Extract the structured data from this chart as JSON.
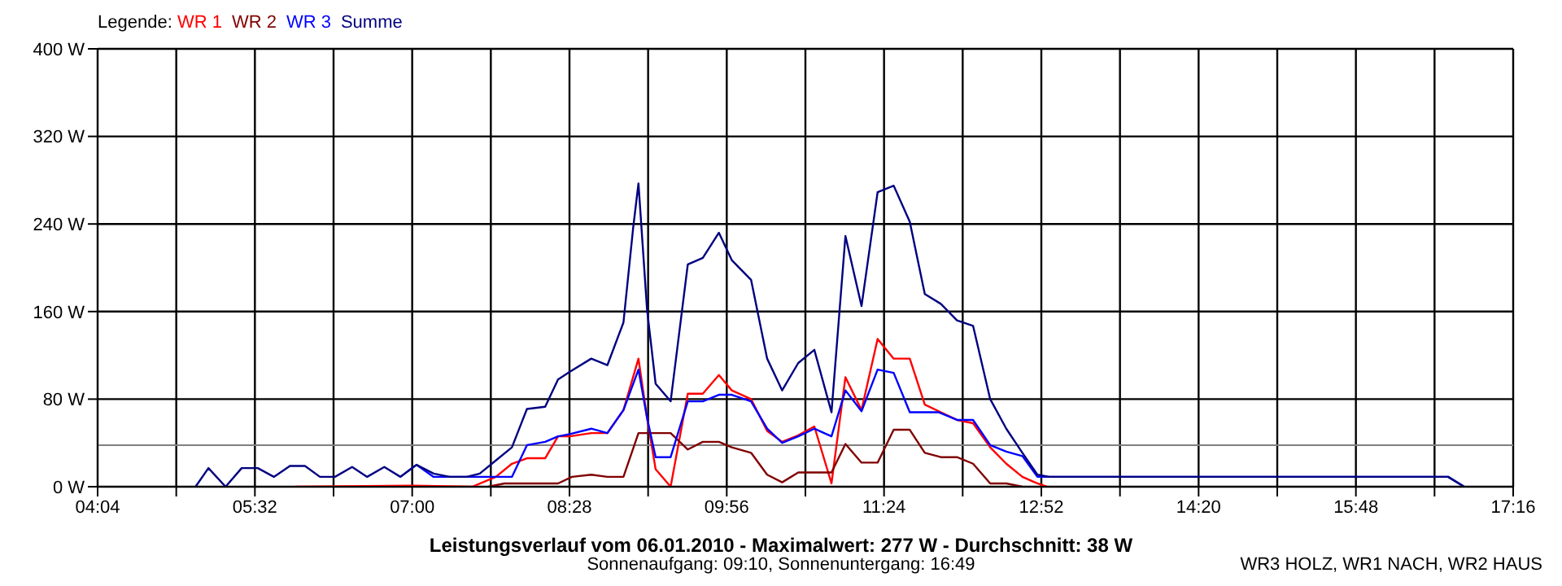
{
  "chart_data": {
    "type": "line",
    "title": "Leistungsverlauf vom 06.01.2010 - Maximalwert: 277 W - Durchschnitt: 38 W",
    "subtitle": "Sonnenaufgang: 09:10, Sonnenuntergang: 16:49",
    "legend_title": "Legende:",
    "legend": "top left",
    "grid": true,
    "marker": "none",
    "line_style": "solid",
    "xlim": [
      4.0667,
      17.2667
    ],
    "xticks": [
      {
        "value": 4.0667,
        "label": "04:04"
      },
      {
        "value": 4.8,
        "label": null
      },
      {
        "value": 5.5333,
        "label": "05:32"
      },
      {
        "value": 6.2667,
        "label": null
      },
      {
        "value": 7.0,
        "label": "07:00"
      },
      {
        "value": 7.7333,
        "label": null
      },
      {
        "value": 8.4667,
        "label": "08:28"
      },
      {
        "value": 9.2,
        "label": null
      },
      {
        "value": 9.9333,
        "label": "09:56"
      },
      {
        "value": 10.6667,
        "label": null
      },
      {
        "value": 11.4,
        "label": "11:24"
      },
      {
        "value": 12.1333,
        "label": null
      },
      {
        "value": 12.8667,
        "label": "12:52"
      },
      {
        "value": 13.6,
        "label": null
      },
      {
        "value": 14.3333,
        "label": "14:20"
      },
      {
        "value": 15.0667,
        "label": null
      },
      {
        "value": 15.8,
        "label": "15:48"
      },
      {
        "value": 16.5333,
        "label": null
      },
      {
        "value": 17.2667,
        "label": "17:16"
      }
    ],
    "ylim": [
      0,
      400
    ],
    "yticks": [
      {
        "value": 0,
        "label": "0 W"
      },
      {
        "value": 80,
        "label": "80 W"
      },
      {
        "value": 160,
        "label": "160 W"
      },
      {
        "value": 240,
        "label": "240 W"
      },
      {
        "value": 320,
        "label": "320 W"
      },
      {
        "value": 400,
        "label": "400 W"
      }
    ],
    "ref_lines": [
      {
        "axis": "y",
        "value": 38,
        "color": "#808080"
      }
    ],
    "annotations": [
      "WR3 HOLZ, WR1 NACH, WR2 HAUS"
    ],
    "series": [
      {
        "name": "WR 1",
        "color": "#ff0000",
        "x": [
          5.91,
          7.0,
          7.56,
          7.78,
          7.93,
          8.07,
          8.24,
          8.36,
          8.47,
          8.67,
          8.82,
          8.97,
          9.11,
          9.19,
          9.27,
          9.41,
          9.57,
          9.71,
          9.86,
          9.98,
          10.16,
          10.31,
          10.45,
          10.6,
          10.75,
          10.91,
          11.04,
          11.19,
          11.34,
          11.49,
          11.64,
          11.78,
          11.93,
          12.08,
          12.23,
          12.39,
          12.54,
          12.69,
          12.83,
          12.92
        ],
        "values": [
          0,
          1,
          0,
          9,
          21,
          26,
          26,
          46,
          46,
          49,
          49,
          70,
          117,
          63,
          16,
          0,
          85,
          85,
          102,
          88,
          80,
          51,
          41,
          47,
          55,
          3,
          100,
          70,
          135,
          117,
          117,
          75,
          68,
          61,
          58,
          36,
          21,
          9,
          3,
          0
        ]
      },
      {
        "name": "WR 2",
        "color": "#800000",
        "x": [
          7.71,
          7.86,
          8.07,
          8.24,
          8.36,
          8.49,
          8.67,
          8.82,
          8.97,
          9.11,
          9.27,
          9.41,
          9.57,
          9.71,
          9.86,
          9.98,
          10.16,
          10.31,
          10.45,
          10.6,
          10.91,
          11.04,
          11.19,
          11.34,
          11.49,
          11.64,
          11.78,
          11.93,
          12.08,
          12.23,
          12.39,
          12.54,
          12.69
        ],
        "values": [
          0,
          3,
          3,
          3,
          3,
          9,
          11,
          9,
          9,
          49,
          49,
          49,
          34,
          41,
          41,
          36,
          31,
          11,
          4,
          13,
          13,
          39,
          22,
          22,
          52,
          52,
          31,
          27,
          27,
          21,
          3,
          3,
          0
        ]
      },
      {
        "name": "WR 3",
        "color": "#0000ff",
        "x": [
          6.89,
          7.04,
          7.2,
          7.35,
          7.51,
          7.63,
          7.78,
          7.93,
          8.07,
          8.24,
          8.36,
          8.47,
          8.67,
          8.82,
          8.97,
          9.11,
          9.19,
          9.27,
          9.41,
          9.57,
          9.71,
          9.86,
          9.98,
          10.16,
          10.31,
          10.45,
          10.6,
          10.75,
          10.91,
          11.04,
          11.19,
          11.34,
          11.49,
          11.64,
          11.91,
          12.08,
          12.23,
          12.39,
          12.54,
          12.69,
          12.83,
          12.94,
          16.66,
          16.81
        ],
        "values": [
          9,
          20,
          9,
          9,
          9,
          9,
          9,
          9,
          38,
          41,
          46,
          48,
          53,
          49,
          70,
          107,
          63,
          27,
          27,
          78,
          78,
          84,
          84,
          78,
          53,
          40,
          46,
          53,
          46,
          88,
          69,
          107,
          104,
          68,
          68,
          61,
          61,
          38,
          32,
          28,
          9,
          9,
          9,
          0
        ]
      },
      {
        "name": "Summe",
        "color": "#000080",
        "x": [
          4.98,
          5.1,
          5.26,
          5.41,
          5.56,
          5.71,
          5.86,
          6.0,
          6.14,
          6.28,
          6.44,
          6.58,
          6.74,
          6.89,
          7.04,
          7.2,
          7.35,
          7.51,
          7.63,
          7.78,
          7.93,
          8.07,
          8.24,
          8.36,
          8.47,
          8.67,
          8.82,
          8.97,
          9.06,
          9.11,
          9.19,
          9.27,
          9.41,
          9.57,
          9.71,
          9.86,
          9.98,
          10.16,
          10.31,
          10.45,
          10.6,
          10.75,
          10.91,
          11.04,
          11.19,
          11.34,
          11.49,
          11.64,
          11.78,
          11.93,
          12.08,
          12.23,
          12.39,
          12.54,
          12.69,
          12.83,
          12.94,
          16.66,
          16.81
        ],
        "values": [
          0,
          17,
          0,
          17,
          17,
          9,
          19,
          19,
          9,
          9,
          18,
          9,
          18,
          9,
          20,
          12,
          9,
          9,
          12,
          24,
          36,
          71,
          73,
          98,
          105,
          117,
          111,
          150,
          236,
          277,
          162,
          94,
          78,
          203,
          209,
          232,
          207,
          189,
          117,
          88,
          113,
          125,
          68,
          229,
          165,
          269,
          275,
          242,
          176,
          167,
          152,
          147,
          80,
          53,
          31,
          11,
          9,
          9,
          0
        ]
      }
    ]
  }
}
